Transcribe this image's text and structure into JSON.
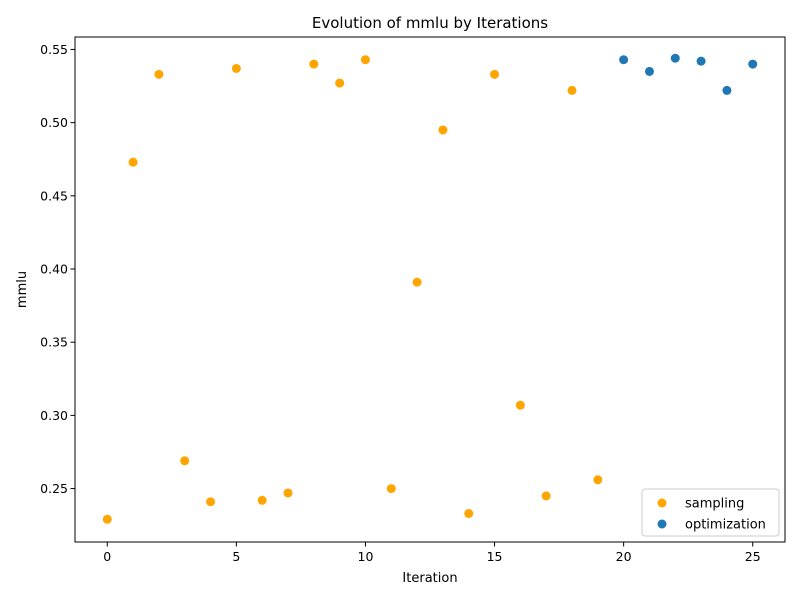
{
  "chart_data": {
    "type": "scatter",
    "title": "Evolution of mmlu by Iterations",
    "xlabel": "Iteration",
    "ylabel": "mmlu",
    "xlim": [
      -1.25,
      26.25
    ],
    "ylim": [
      0.2135,
      0.5585
    ],
    "x_ticks": [
      0,
      5,
      10,
      15,
      20,
      25
    ],
    "y_ticks": [
      0.25,
      0.3,
      0.35,
      0.4,
      0.45,
      0.5,
      0.55
    ],
    "x_tick_labels": [
      "0",
      "5",
      "10",
      "15",
      "20",
      "25"
    ],
    "y_tick_labels": [
      "0.25",
      "0.30",
      "0.35",
      "0.40",
      "0.45",
      "0.50",
      "0.55"
    ],
    "grid": false,
    "legend_position": "lower-right",
    "series": [
      {
        "name": "sampling",
        "color": "#ffa500",
        "points": [
          {
            "x": 0,
            "y": 0.229
          },
          {
            "x": 1,
            "y": 0.473
          },
          {
            "x": 2,
            "y": 0.533
          },
          {
            "x": 3,
            "y": 0.269
          },
          {
            "x": 4,
            "y": 0.241
          },
          {
            "x": 5,
            "y": 0.537
          },
          {
            "x": 6,
            "y": 0.242
          },
          {
            "x": 7,
            "y": 0.247
          },
          {
            "x": 8,
            "y": 0.54
          },
          {
            "x": 9,
            "y": 0.527
          },
          {
            "x": 10,
            "y": 0.543
          },
          {
            "x": 11,
            "y": 0.25
          },
          {
            "x": 12,
            "y": 0.391
          },
          {
            "x": 13,
            "y": 0.495
          },
          {
            "x": 14,
            "y": 0.233
          },
          {
            "x": 15,
            "y": 0.533
          },
          {
            "x": 16,
            "y": 0.307
          },
          {
            "x": 17,
            "y": 0.245
          },
          {
            "x": 18,
            "y": 0.522
          },
          {
            "x": 19,
            "y": 0.256
          }
        ]
      },
      {
        "name": "optimization",
        "color": "#1f77b4",
        "points": [
          {
            "x": 20,
            "y": 0.543
          },
          {
            "x": 21,
            "y": 0.535
          },
          {
            "x": 22,
            "y": 0.544
          },
          {
            "x": 23,
            "y": 0.542
          },
          {
            "x": 24,
            "y": 0.522
          },
          {
            "x": 25,
            "y": 0.54
          }
        ]
      }
    ]
  }
}
